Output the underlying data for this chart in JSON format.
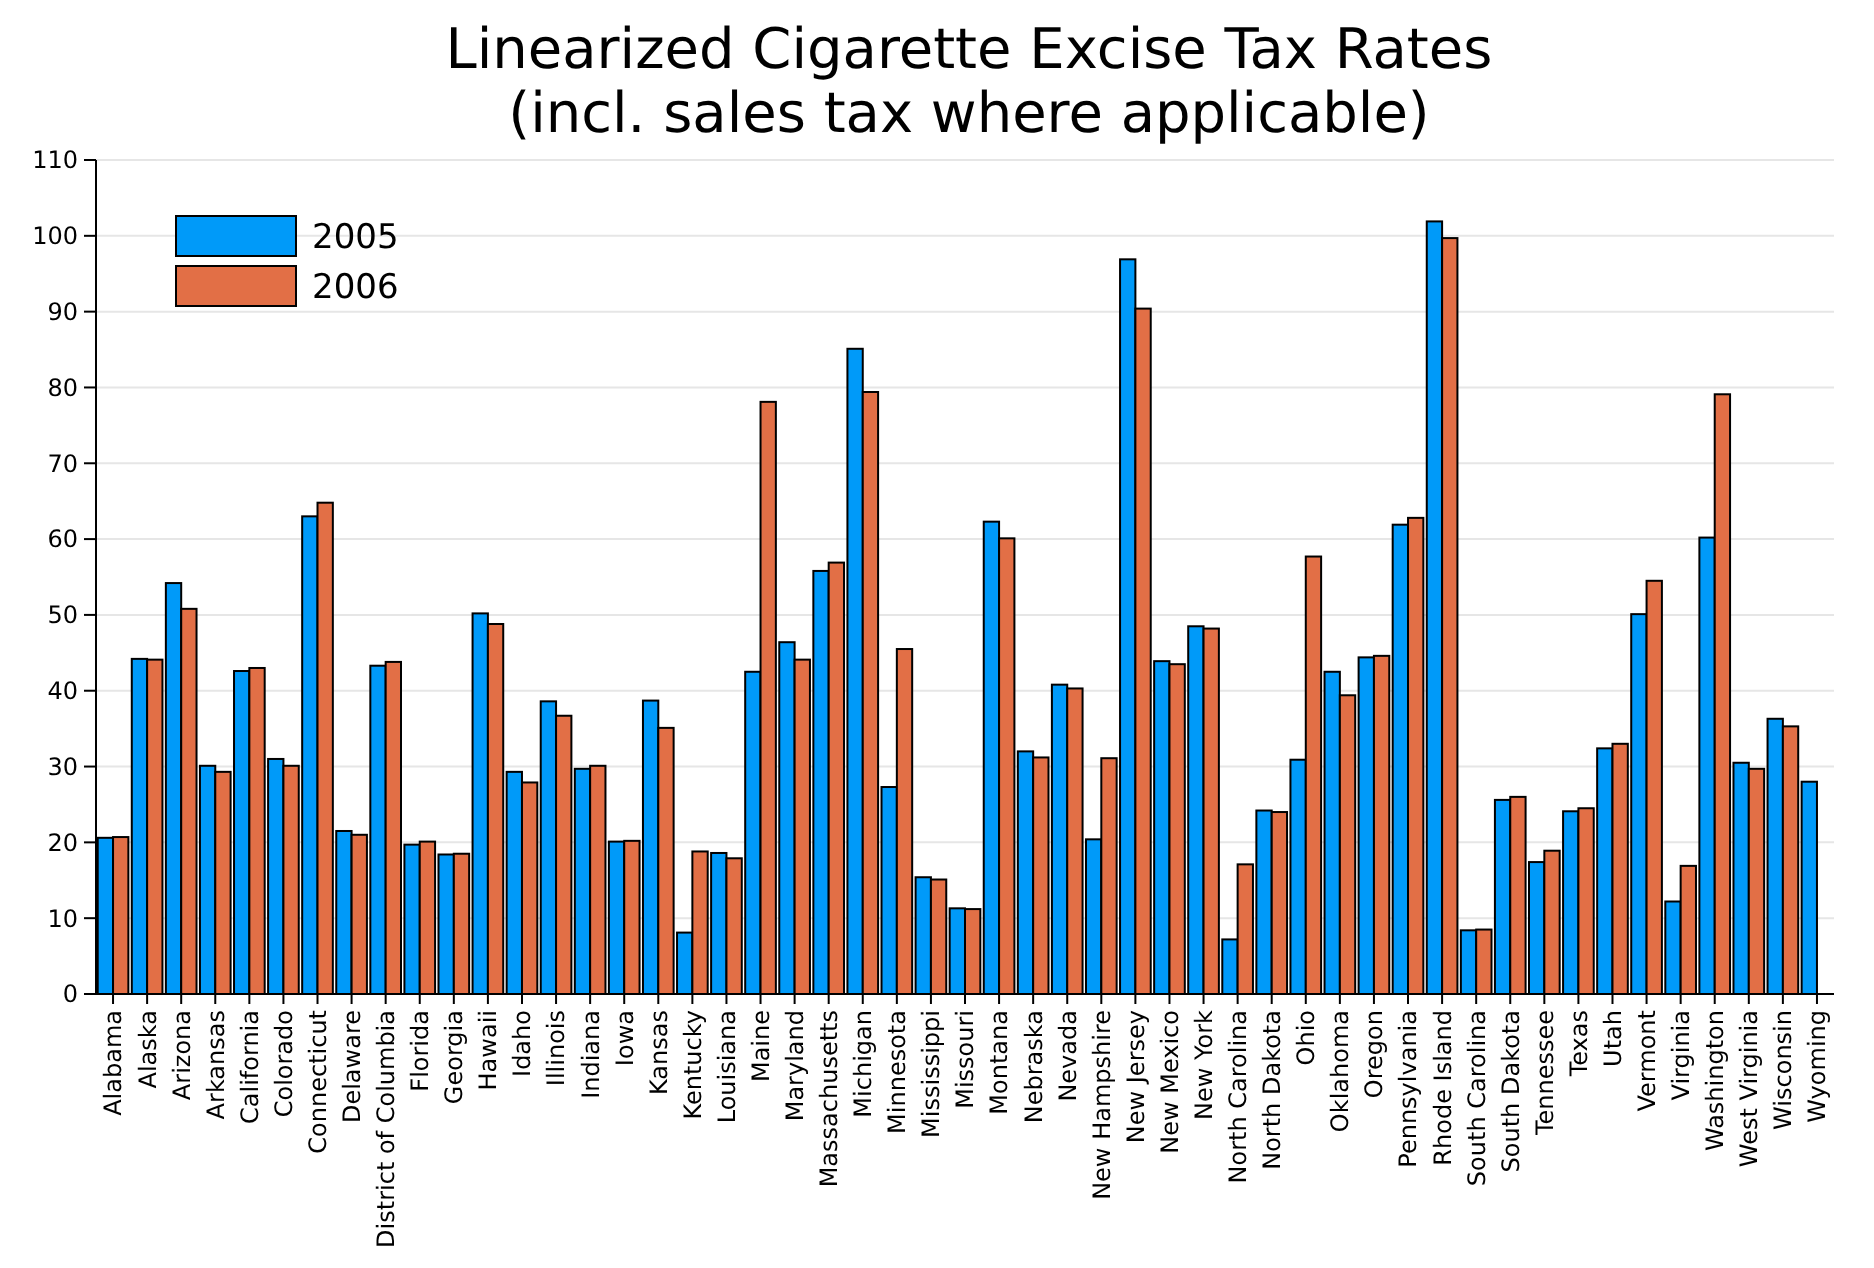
{
  "chart_data": {
    "type": "bar",
    "title": "Linearized Cigarette Excise Tax Rates\n(incl. sales tax where applicable)",
    "categories": [
      "Alabama",
      "Alaska",
      "Arizona",
      "Arkansas",
      "California",
      "Colorado",
      "Connecticut",
      "Delaware",
      "District of Columbia",
      "Florida",
      "Georgia",
      "Hawaii",
      "Idaho",
      "Illinois",
      "Indiana",
      "Iowa",
      "Kansas",
      "Kentucky",
      "Louisiana",
      "Maine",
      "Maryland",
      "Massachusetts",
      "Michigan",
      "Minnesota",
      "Mississippi",
      "Missouri",
      "Montana",
      "Nebraska",
      "Nevada",
      "New Hampshire",
      "New Jersey",
      "New Mexico",
      "New York",
      "North Carolina",
      "North Dakota",
      "Ohio",
      "Oklahoma",
      "Oregon",
      "Pennsylvania",
      "Rhode Island",
      "South Carolina",
      "South Dakota",
      "Tennessee",
      "Texas",
      "Utah",
      "Vermont",
      "Virginia",
      "Washington",
      "West Virginia",
      "Wisconsin",
      "Wyoming"
    ],
    "series": [
      {
        "name": "2005",
        "color": "#009af9",
        "values": [
          20.6,
          44.2,
          54.2,
          30.1,
          42.6,
          31.0,
          63.0,
          21.5,
          43.3,
          19.7,
          18.4,
          50.2,
          29.3,
          38.6,
          29.7,
          20.1,
          38.7,
          8.1,
          18.6,
          42.5,
          46.4,
          55.8,
          85.1,
          27.3,
          15.4,
          11.3,
          62.3,
          32.0,
          40.8,
          20.4,
          96.9,
          43.9,
          48.5,
          7.2,
          24.2,
          30.9,
          42.5,
          44.4,
          61.9,
          101.9,
          8.4,
          25.6,
          17.4,
          24.1,
          32.4,
          50.1,
          12.2,
          60.2,
          30.5,
          36.3,
          28.0
        ]
      },
      {
        "name": "2006",
        "color": "#e26f46",
        "values": [
          20.7,
          44.1,
          50.8,
          29.3,
          43.0,
          30.1,
          64.8,
          21.0,
          43.8,
          20.1,
          18.5,
          48.8,
          27.9,
          36.7,
          30.1,
          20.2,
          35.1,
          18.8,
          17.9,
          78.1,
          44.1,
          56.9,
          79.4,
          45.5,
          15.1,
          11.2,
          60.1,
          31.2,
          40.3,
          31.1,
          90.4,
          43.5,
          48.2,
          17.1,
          24.0,
          57.7,
          39.4,
          44.6,
          62.8,
          99.7,
          8.5,
          26.0,
          18.9,
          24.5,
          33.0,
          54.5,
          16.9,
          79.1,
          29.7,
          35.3,
          null
        ]
      }
    ],
    "ylim": [
      0,
      110
    ],
    "yticks": [
      0,
      10,
      20,
      30,
      40,
      50,
      60,
      70,
      80,
      90,
      100,
      110
    ],
    "grid": "y",
    "legend": "top left"
  }
}
